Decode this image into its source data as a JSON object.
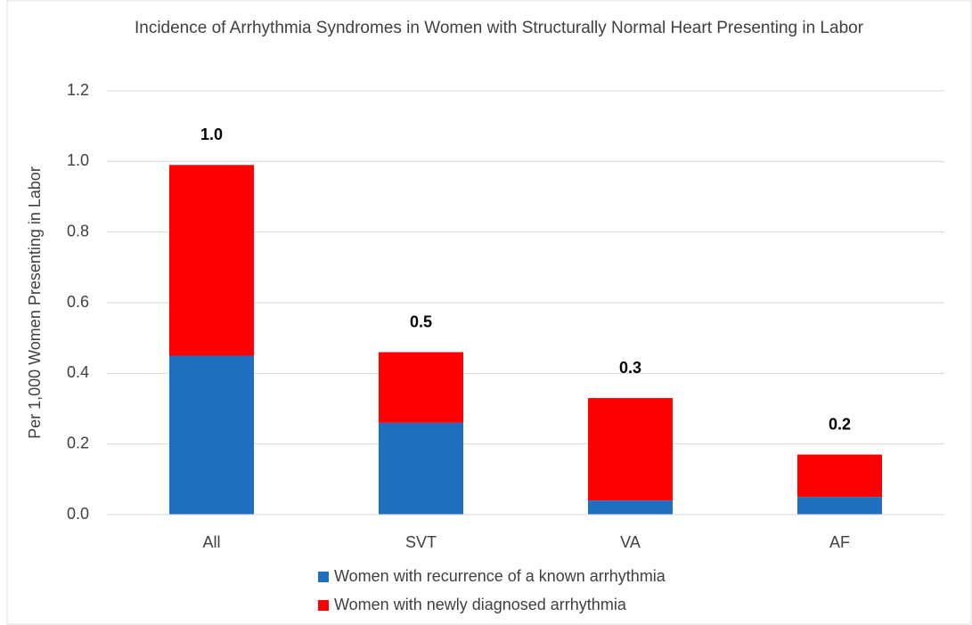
{
  "chart_data": {
    "type": "stacked_bar",
    "title": "Incidence of Arrhythmia Syndromes in Women with Structurally Normal Heart Presenting in Labor",
    "y_label": "Per 1,000 Women Presenting in Labor",
    "categories": [
      "All",
      "SVT",
      "VA",
      "AF"
    ],
    "series": [
      {
        "name": "Women with recurrence of a known arrhythmia",
        "color": "#1f6fc0",
        "values": [
          0.45,
          0.26,
          0.04,
          0.05
        ]
      },
      {
        "name": "Women with newly diagnosed arrhythmia",
        "color": "#ff0000",
        "values": [
          0.54,
          0.2,
          0.29,
          0.12
        ]
      }
    ],
    "total_labels": [
      "1.0",
      "0.5",
      "0.3",
      "0.2"
    ],
    "ylim": [
      0,
      1.2
    ],
    "yticks": [
      {
        "value": 0,
        "label": "0.0"
      },
      0.2,
      0.4,
      0.6,
      0.8,
      {
        "value": 1,
        "label": "1.0"
      },
      1.2
    ],
    "grid": true
  }
}
